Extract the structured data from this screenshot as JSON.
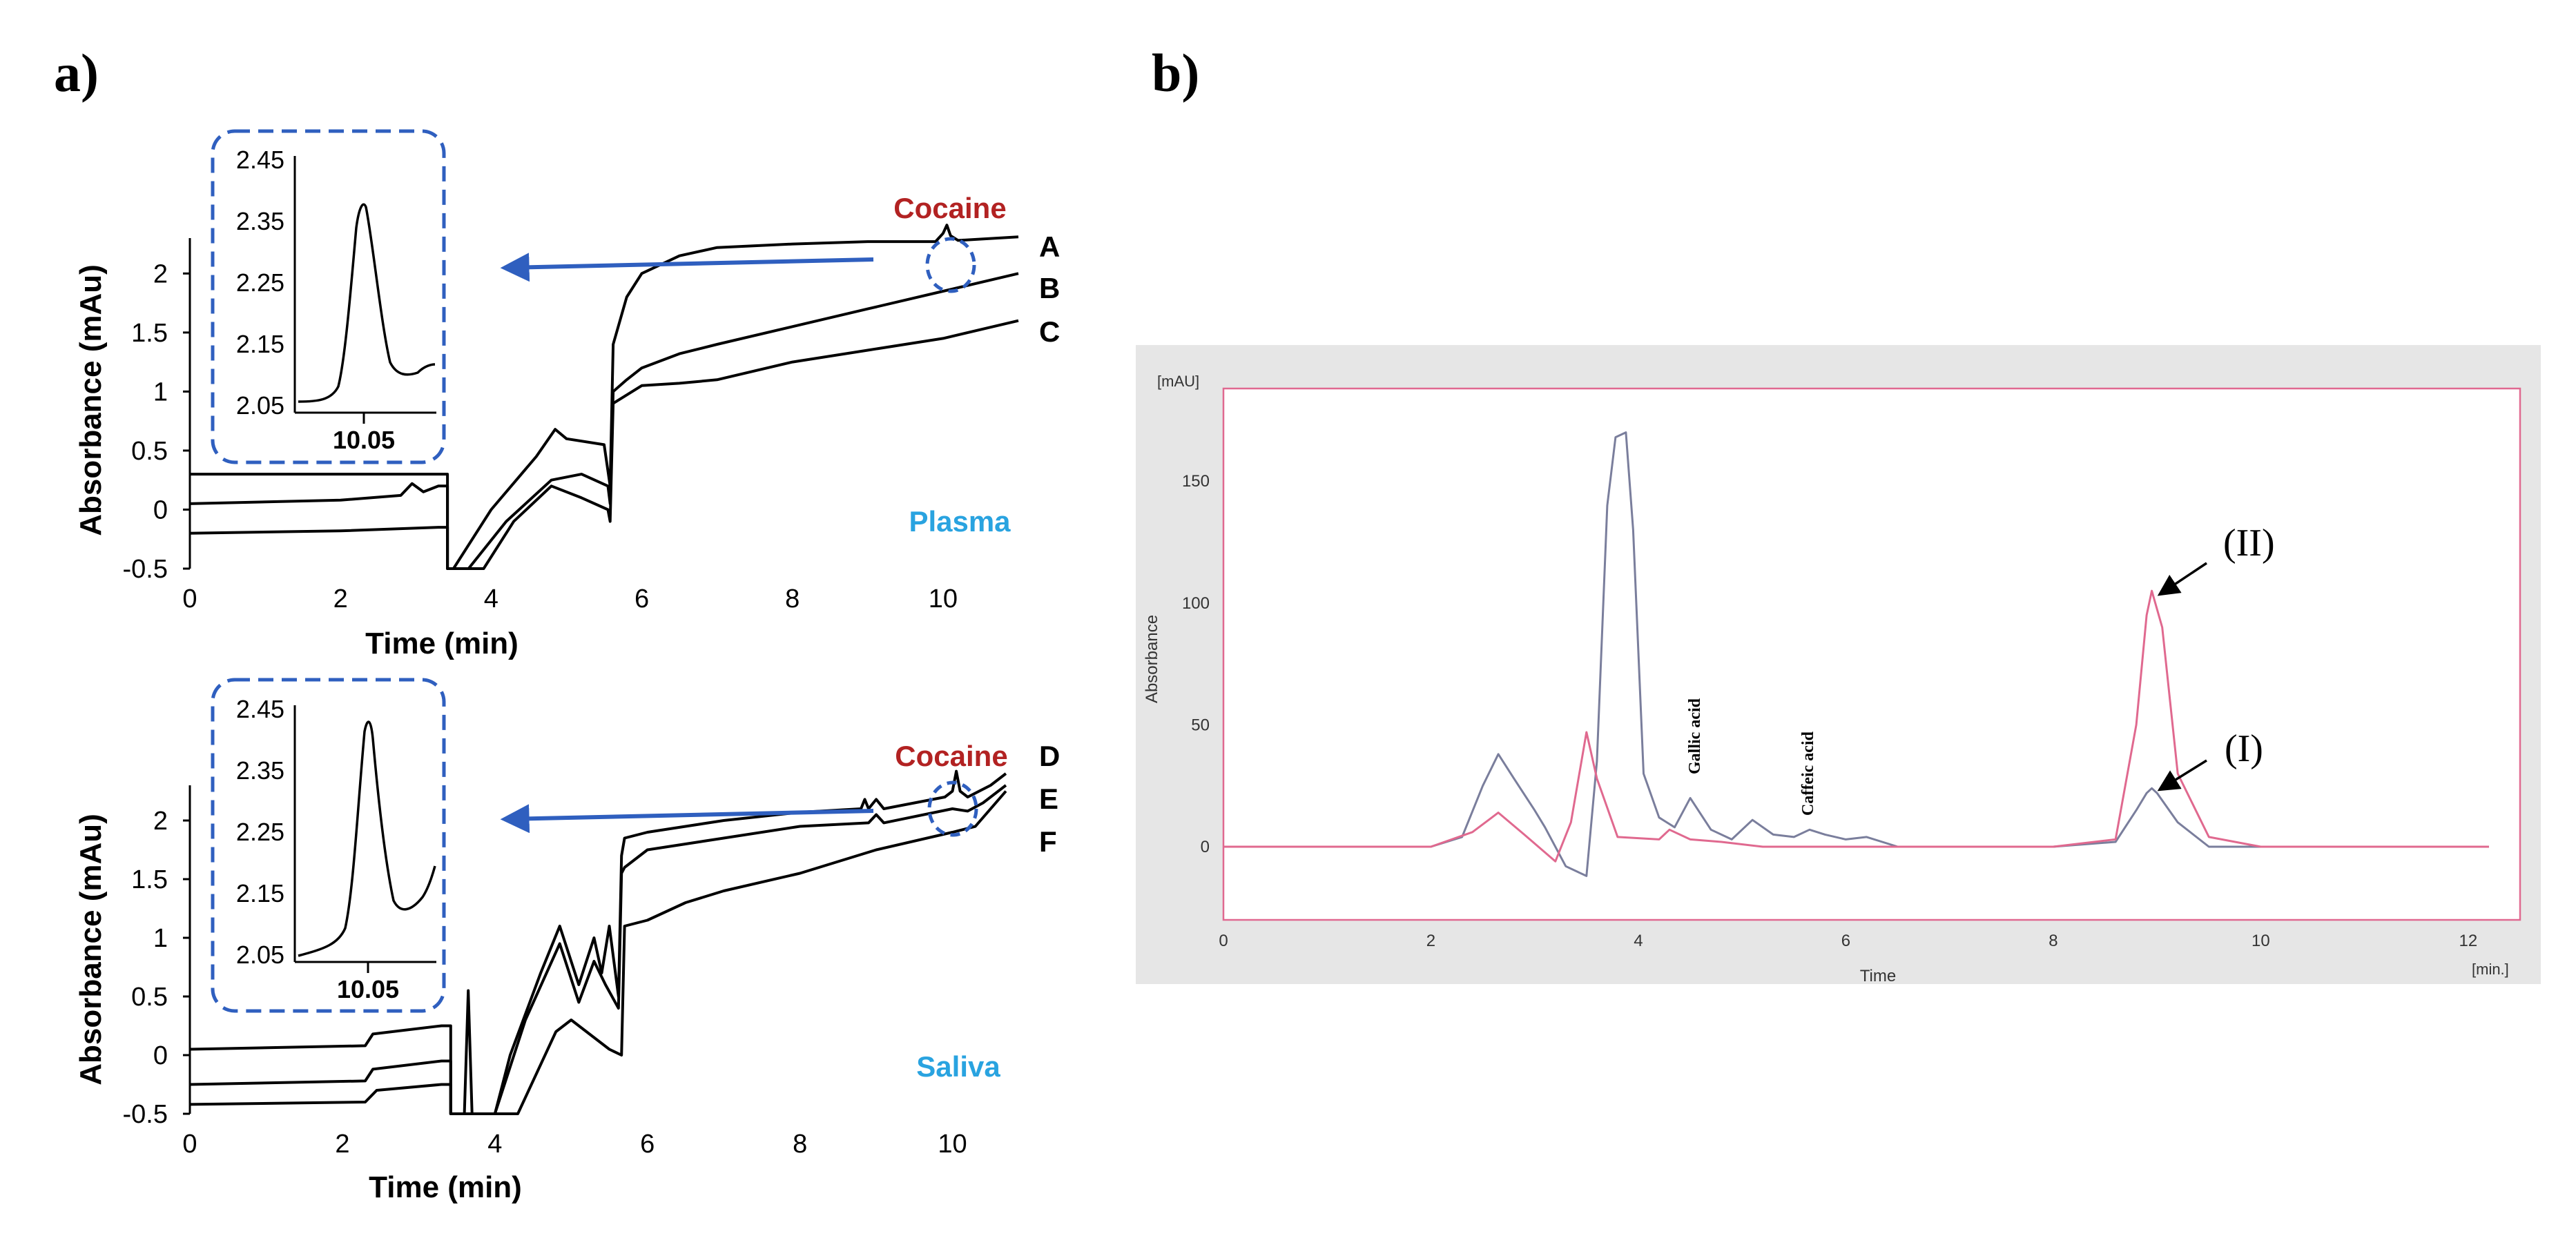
{
  "panels": {
    "a": "a)",
    "b": "b)"
  },
  "colors": {
    "trace": "#000000",
    "cocaine": "#b22222",
    "matrix": "#29a3e0",
    "arrow": "#2f5fbf",
    "box": "#2f5fbf",
    "b_blue": "#7a7e9c",
    "b_pink": "#e0698f",
    "b_frame": "#e06990",
    "b_bg": "#e6e6e6"
  },
  "chart_data": [
    {
      "id": "plasma",
      "type": "line",
      "xlabel": "Time (min)",
      "ylabel": "Absorbance (mAu)",
      "xticks": [
        0,
        2,
        4,
        6,
        8,
        10
      ],
      "yticks": [
        -0.5,
        0,
        0.5,
        1,
        1.5,
        2
      ],
      "ytick_labels": [
        "-0.5",
        "0",
        "0.5",
        "1",
        "1.5",
        "2"
      ],
      "xlim": [
        0,
        11
      ],
      "ylim": [
        -0.5,
        2.3
      ],
      "matrix_label": "Plasma",
      "analyte_label": "Cocaine",
      "series": [
        {
          "name": "A",
          "x": [
            0,
            2,
            3.3,
            3.42,
            3.42,
            3.5,
            4.0,
            4.6,
            4.85,
            5.0,
            5.5,
            5.58,
            5.62,
            5.8,
            6.0,
            6.5,
            7.0,
            8.0,
            9.0,
            9.9,
            10.0,
            10.05,
            10.1,
            10.2,
            11.0
          ],
          "y": [
            0.3,
            0.3,
            0.3,
            0.3,
            -0.5,
            -0.5,
            0.0,
            0.45,
            0.68,
            0.6,
            0.55,
            0.2,
            1.4,
            1.8,
            2.0,
            2.15,
            2.22,
            2.25,
            2.27,
            2.27,
            2.34,
            2.41,
            2.32,
            2.28,
            2.31
          ]
        },
        {
          "name": "B",
          "x": [
            0,
            2,
            2.8,
            2.95,
            3.1,
            3.3,
            3.42,
            3.42,
            3.7,
            4.2,
            4.8,
            5.2,
            5.55,
            5.58,
            5.62,
            5.8,
            6.0,
            6.5,
            7.0,
            8.0,
            9.0,
            10.0,
            11.0
          ],
          "y": [
            0.05,
            0.08,
            0.12,
            0.22,
            0.15,
            0.2,
            0.2,
            -0.5,
            -0.5,
            -0.1,
            0.25,
            0.3,
            0.2,
            0.05,
            1.0,
            1.1,
            1.2,
            1.32,
            1.4,
            1.55,
            1.7,
            1.85,
            2.0
          ]
        },
        {
          "name": "C",
          "x": [
            0,
            2,
            3.3,
            3.42,
            3.42,
            3.9,
            4.3,
            4.8,
            5.2,
            5.55,
            5.58,
            5.62,
            6.0,
            6.5,
            7.0,
            8.0,
            9.0,
            10.0,
            11.0
          ],
          "y": [
            -0.2,
            -0.18,
            -0.15,
            -0.15,
            -0.5,
            -0.5,
            -0.1,
            0.2,
            0.1,
            0.0,
            -0.1,
            0.9,
            1.05,
            1.07,
            1.1,
            1.25,
            1.35,
            1.45,
            1.6
          ]
        }
      ],
      "series_labels": [
        "A",
        "B",
        "C"
      ],
      "inset": {
        "yticks": [
          "2.45",
          "2.35",
          "2.25",
          "2.15",
          "2.05"
        ],
        "xtick": "10.05"
      }
    },
    {
      "id": "saliva",
      "type": "line",
      "xlabel": "Time (min)",
      "ylabel": "Absorbance (mAu)",
      "xticks": [
        0,
        2,
        4,
        6,
        8,
        10
      ],
      "yticks": [
        -0.5,
        0,
        0.5,
        1,
        1.5,
        2
      ],
      "ytick_labels": [
        "-0.5",
        "0",
        "0.5",
        "1",
        "1.5",
        "2"
      ],
      "xlim": [
        0,
        11
      ],
      "ylim": [
        -0.5,
        2.3
      ],
      "matrix_label": "Saliva",
      "analyte_label": "Cocaine",
      "series": [
        {
          "name": "D",
          "x": [
            0,
            2.3,
            2.4,
            3.3,
            3.42,
            3.42,
            3.6,
            3.65,
            3.7,
            3.78,
            4.0,
            4.2,
            4.6,
            4.85,
            5.1,
            5.3,
            5.4,
            5.5,
            5.62,
            5.66,
            5.7,
            6.0,
            7.0,
            8.0,
            8.8,
            8.85,
            8.9,
            9.0,
            9.1,
            9.9,
            10.0,
            10.05,
            10.1,
            10.2,
            10.5,
            10.7
          ],
          "y": [
            0.05,
            0.08,
            0.18,
            0.25,
            0.25,
            -0.5,
            -0.5,
            0.55,
            -0.5,
            -0.5,
            -0.5,
            0.0,
            0.7,
            1.1,
            0.6,
            1.0,
            0.7,
            1.1,
            0.5,
            1.7,
            1.85,
            1.9,
            2.0,
            2.07,
            2.1,
            2.18,
            2.1,
            2.18,
            2.1,
            2.2,
            2.25,
            2.42,
            2.25,
            2.2,
            2.3,
            2.4
          ]
        },
        {
          "name": "E",
          "x": [
            0,
            2.3,
            2.4,
            3.3,
            3.42,
            3.42,
            4.0,
            4.4,
            4.85,
            5.1,
            5.3,
            5.45,
            5.62,
            5.66,
            5.7,
            6.0,
            7.0,
            8.0,
            8.9,
            9.0,
            9.1,
            10.0,
            10.2,
            10.4,
            10.7
          ],
          "y": [
            -0.25,
            -0.22,
            -0.12,
            -0.05,
            -0.05,
            -0.5,
            -0.5,
            0.3,
            0.95,
            0.45,
            0.8,
            0.6,
            0.4,
            1.55,
            1.6,
            1.75,
            1.85,
            1.95,
            1.98,
            2.05,
            1.98,
            2.1,
            2.08,
            2.15,
            2.3
          ]
        },
        {
          "name": "F",
          "x": [
            0,
            2.3,
            2.45,
            3.3,
            3.42,
            3.42,
            4.3,
            4.8,
            5.0,
            5.5,
            5.66,
            5.7,
            6.0,
            6.5,
            7.0,
            8.0,
            9.0,
            10.0,
            10.3,
            10.7
          ],
          "y": [
            -0.42,
            -0.4,
            -0.3,
            -0.25,
            -0.25,
            -0.5,
            -0.5,
            0.2,
            0.3,
            0.05,
            0.0,
            1.1,
            1.15,
            1.3,
            1.4,
            1.55,
            1.75,
            1.9,
            1.95,
            2.25
          ]
        }
      ],
      "series_labels": [
        "D",
        "E",
        "F"
      ],
      "inset": {
        "yticks": [
          "2.45",
          "2.35",
          "2.25",
          "2.15",
          "2.05"
        ],
        "xtick": "10.05"
      }
    },
    {
      "id": "b",
      "type": "line",
      "unit_label": "[mAU]",
      "x_unit_label": "[min.]",
      "xlabel": "Time",
      "ylabel": "Absorbance",
      "xticks": [
        0,
        2,
        4,
        6,
        8,
        10,
        12
      ],
      "yticks": [
        0,
        50,
        100,
        150
      ],
      "xlim": [
        0,
        12.5
      ],
      "ylim": [
        -30,
        188
      ],
      "series": [
        {
          "name": "blue",
          "x": [
            0,
            2,
            2.3,
            2.5,
            2.65,
            2.8,
            3.0,
            3.1,
            3.3,
            3.5,
            3.6,
            3.7,
            3.78,
            3.88,
            3.95,
            4.05,
            4.2,
            4.35,
            4.5,
            4.7,
            4.9,
            5.1,
            5.3,
            5.5,
            5.65,
            5.8,
            6.0,
            6.2,
            6.5,
            7.0,
            8.0,
            8.6,
            8.8,
            8.9,
            8.95,
            9.0,
            9.2,
            9.5,
            10,
            12.2
          ],
          "y": [
            0,
            0,
            4,
            25,
            38,
            28,
            15,
            8,
            -8,
            -12,
            35,
            140,
            168,
            170,
            130,
            30,
            12,
            8,
            20,
            7,
            3,
            11,
            5,
            4,
            7,
            5,
            3,
            4,
            0,
            0,
            0,
            2,
            15,
            22,
            24,
            22,
            10,
            0,
            0,
            0
          ]
        },
        {
          "name": "pink",
          "x": [
            0,
            2,
            2.4,
            2.65,
            2.9,
            3.2,
            3.35,
            3.5,
            3.6,
            3.8,
            4.2,
            4.3,
            4.5,
            4.8,
            5.2,
            8.0,
            8.6,
            8.8,
            8.9,
            8.95,
            9.05,
            9.2,
            9.5,
            10,
            12.2
          ],
          "y": [
            0,
            0,
            6,
            14,
            5,
            -6,
            10,
            47,
            28,
            4,
            3,
            7,
            3,
            2,
            0,
            0,
            3,
            50,
            95,
            105,
            90,
            30,
            4,
            0,
            0
          ]
        }
      ],
      "annotations": [
        {
          "text": "Gallic acid",
          "x": 4.5
        },
        {
          "text": "Caffeic acid",
          "x": 5.6
        },
        {
          "text": "(II)",
          "x": 8.95
        },
        {
          "text": "(I)",
          "x": 8.95
        }
      ]
    }
  ]
}
